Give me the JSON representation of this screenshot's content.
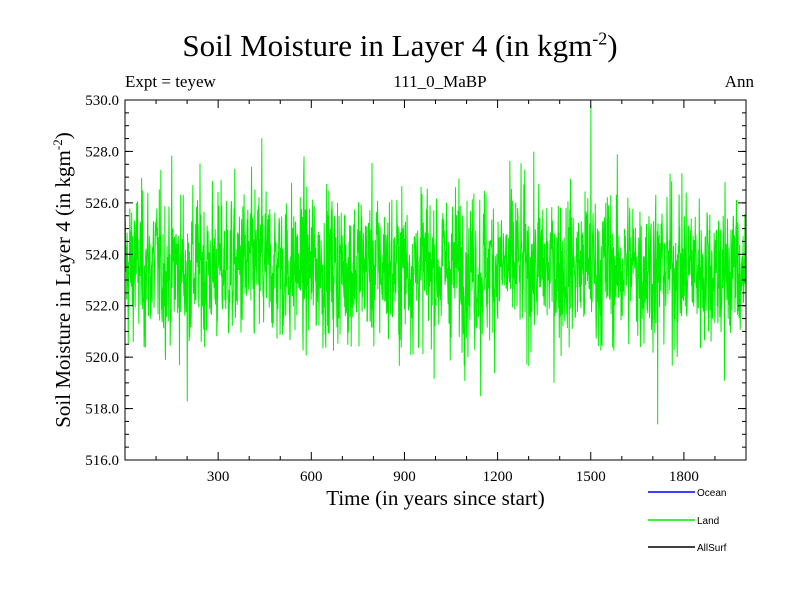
{
  "chart_data": {
    "type": "line",
    "title": "Soil Moisture in Layer 4 (in kgm",
    "title_exponent": "-2",
    "title_close": ")",
    "subtitle_left": "Expt = teyew",
    "subtitle_center": "111_0_MaBP",
    "subtitle_right": "Ann",
    "xlabel": "Time (in years since start)",
    "ylabel": "Soil Moisture in Layer 4 (in kgm",
    "ylabel_exponent": "-2",
    "ylabel_close": ")",
    "xlim": [
      0,
      2000
    ],
    "ylim": [
      516.0,
      530.0
    ],
    "xticks": [
      300,
      600,
      900,
      1200,
      1500,
      1800
    ],
    "yticks": [
      "516.0",
      "518.0",
      "520.0",
      "522.0",
      "524.0",
      "526.0",
      "528.0",
      "530.0"
    ],
    "series": [
      {
        "name": "Ocean",
        "color": "#0000ff",
        "values": []
      },
      {
        "name": "Land",
        "color": "#00ee00",
        "mean": 523.5,
        "std": 1.5,
        "n_years": 2000,
        "extremes": [
          {
            "x": 30,
            "y": 525.3
          },
          {
            "x": 200,
            "y": 518.3
          },
          {
            "x": 440,
            "y": 528.5
          },
          {
            "x": 1145,
            "y": 518.5
          },
          {
            "x": 1500,
            "y": 529.8
          },
          {
            "x": 1715,
            "y": 517.4
          },
          {
            "x": 1930,
            "y": 519.1
          }
        ]
      },
      {
        "name": "AllSurf",
        "color": "#000000",
        "values": []
      }
    ]
  }
}
